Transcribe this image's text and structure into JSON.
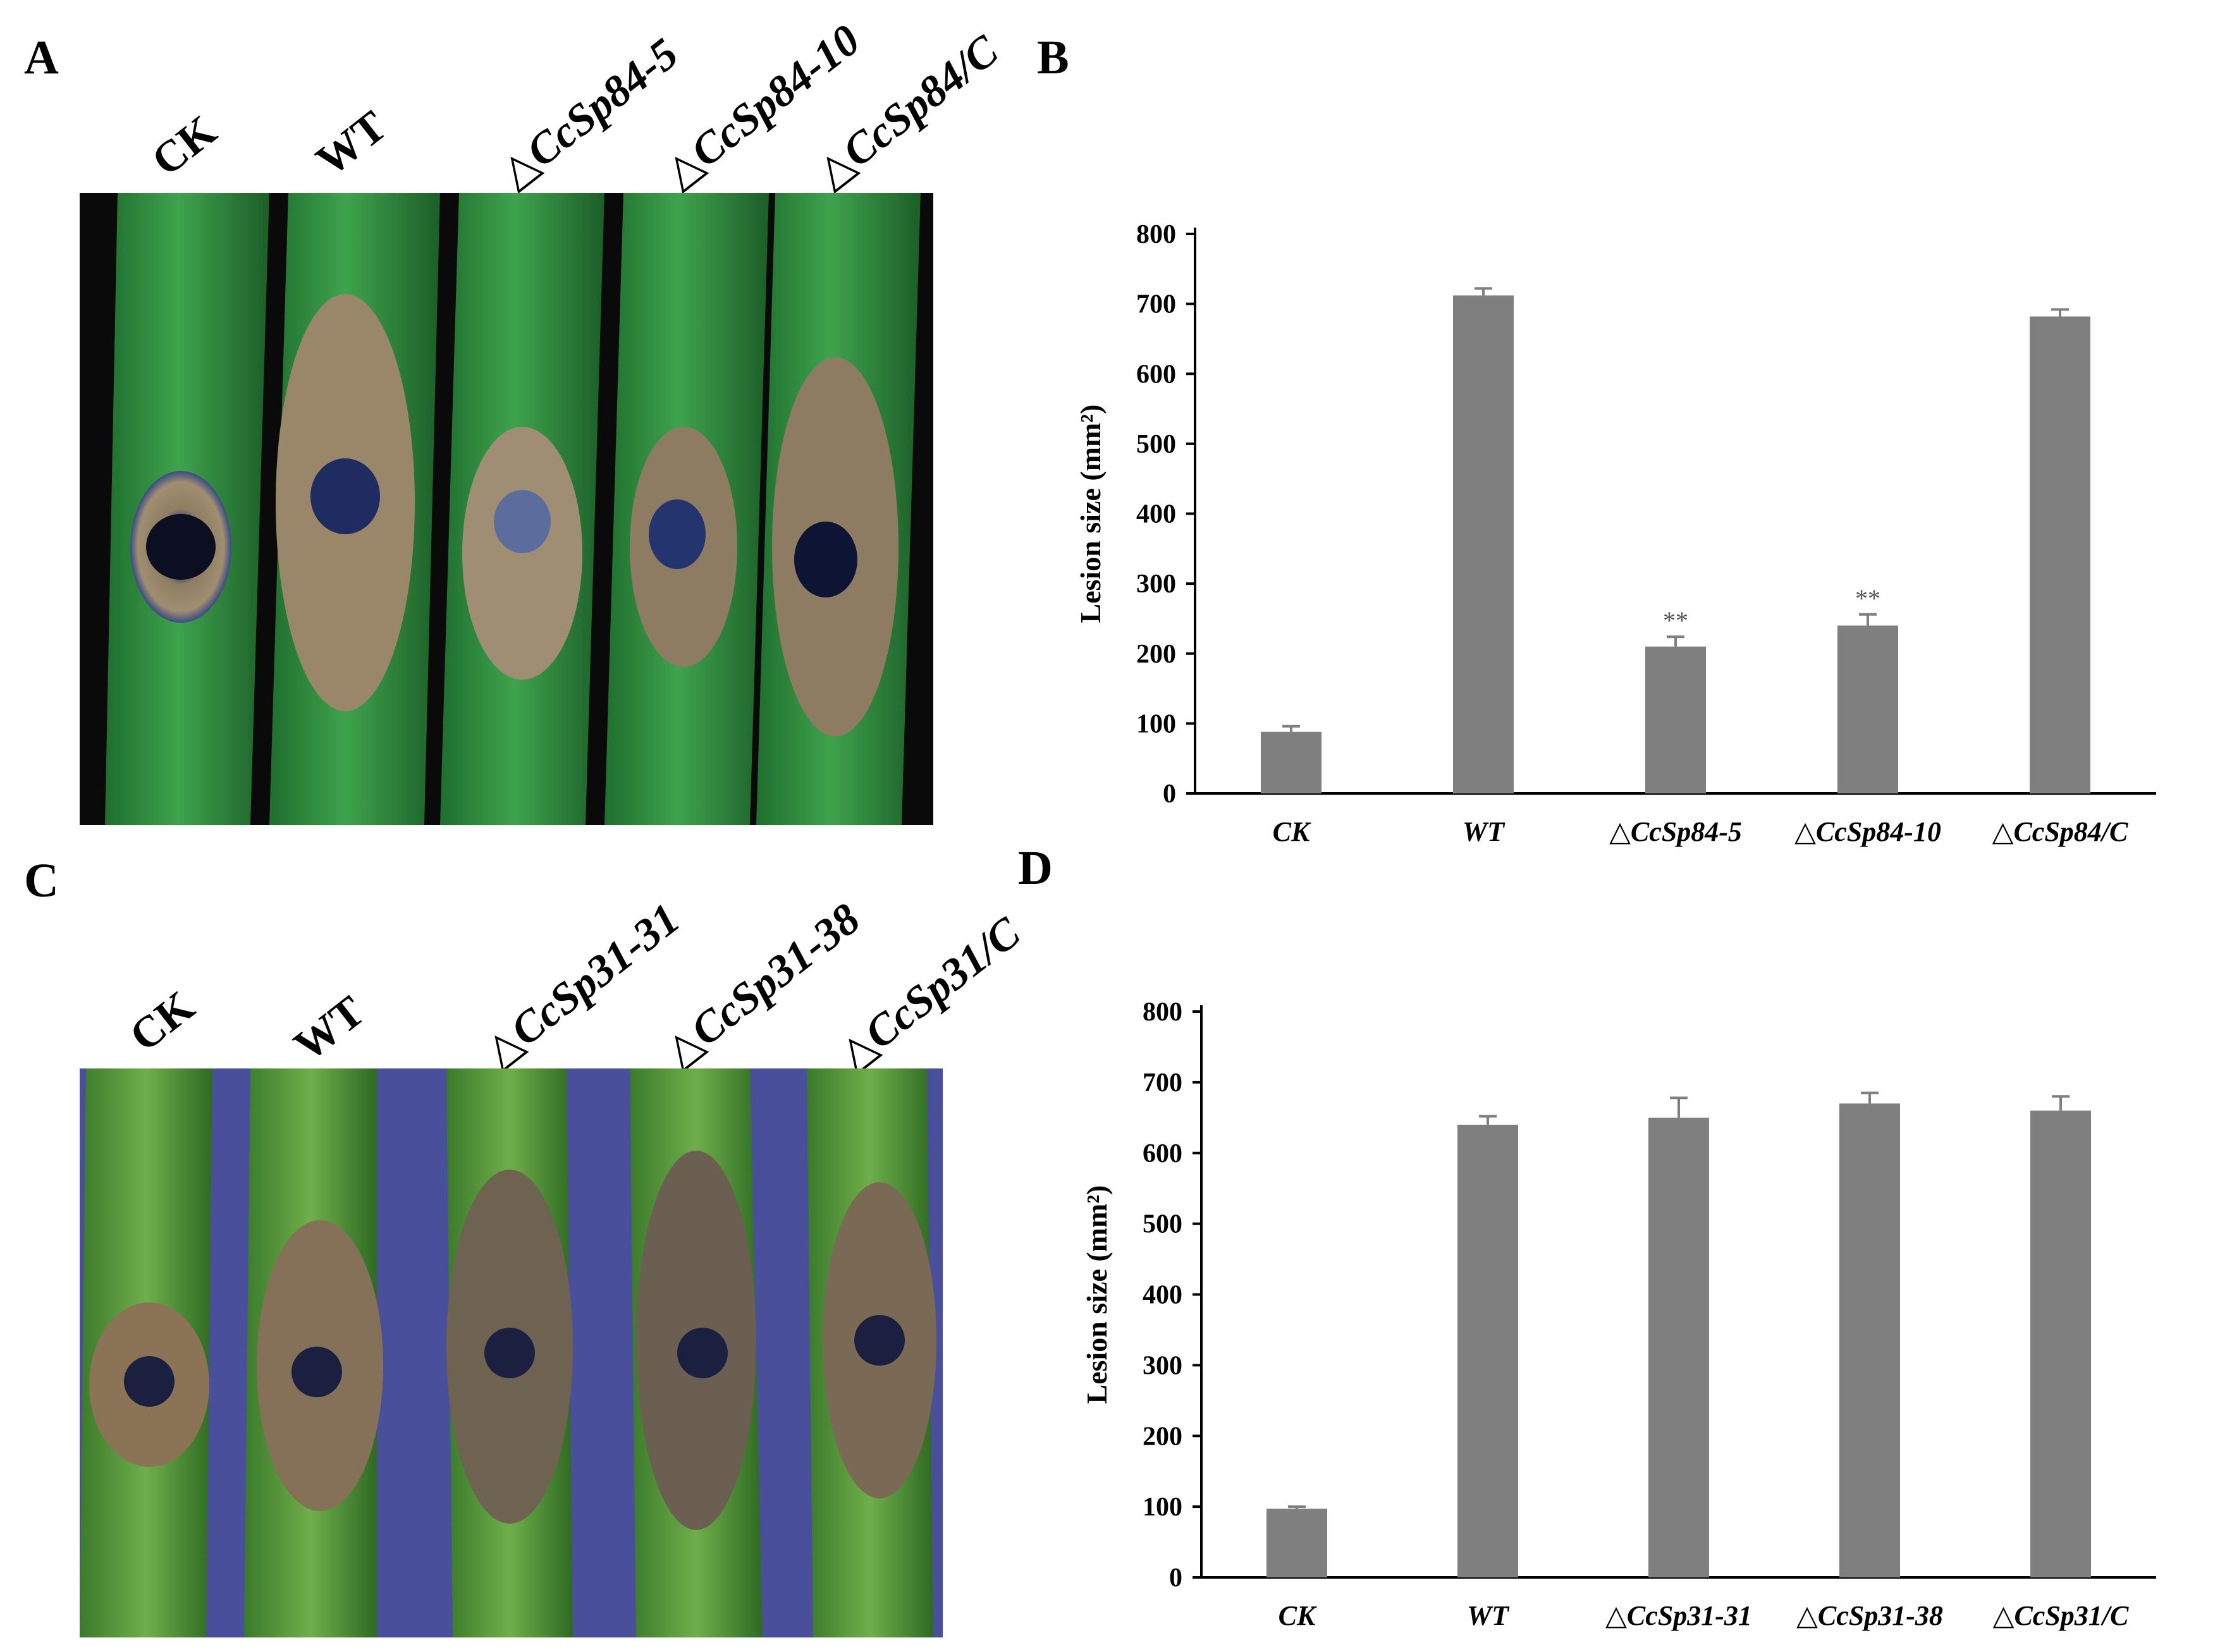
{
  "panels": {
    "a": {
      "letter": "A",
      "labels": [
        {
          "prefix": "",
          "italic": "",
          "plain": "CK"
        },
        {
          "prefix": "",
          "italic": "",
          "plain": "WT"
        },
        {
          "prefix": "△",
          "italic": "CcSp84-5",
          "plain": ""
        },
        {
          "prefix": "△",
          "italic": "CcSp84-10",
          "plain": ""
        },
        {
          "prefix": "△",
          "italic": "CcSp84/C",
          "plain": ""
        }
      ]
    },
    "b": {
      "letter": "B"
    },
    "c": {
      "letter": "C",
      "labels": [
        {
          "prefix": "",
          "italic": "",
          "plain": "CK"
        },
        {
          "prefix": "",
          "italic": "",
          "plain": "WT"
        },
        {
          "prefix": "△",
          "italic": "CcSp31-31",
          "plain": ""
        },
        {
          "prefix": "△",
          "italic": "CcSp31-38",
          "plain": ""
        },
        {
          "prefix": "△",
          "italic": "CcSp31/C",
          "plain": ""
        }
      ]
    },
    "d": {
      "letter": "D"
    }
  },
  "colors": {
    "bar": "#7f7f7f",
    "photo_a_background": "#0a0a0a",
    "photo_c_background": "#4a4f9c",
    "stem_green": "#2f8a3c",
    "lesion_brown": "#8a7a5c",
    "lesion_center": "#1b2040"
  },
  "chart_data": [
    {
      "type": "bar",
      "panel": "B",
      "categories": [
        "CK",
        "WT",
        "△CcSp84-5",
        "△CcSp84-10",
        "△CcSp84/C"
      ],
      "values": [
        88,
        712,
        210,
        240,
        682
      ],
      "errors": [
        8,
        10,
        14,
        16,
        10
      ],
      "annotations": [
        "",
        "",
        "**",
        "**",
        ""
      ],
      "ylabel": "Lesion size (mm²)",
      "ylim": [
        0,
        800
      ],
      "yticks": [
        0,
        100,
        200,
        300,
        400,
        500,
        600,
        700,
        800
      ],
      "grid": false
    },
    {
      "type": "bar",
      "panel": "D",
      "categories": [
        "CK",
        "WT",
        "△CcSp31-31",
        "△CcSp31-38",
        "△CcSp31/C"
      ],
      "values": [
        97,
        640,
        650,
        670,
        660
      ],
      "errors": [
        3,
        12,
        28,
        15,
        20
      ],
      "annotations": [
        "",
        "",
        "",
        "",
        ""
      ],
      "ylabel": "Lesion size (mm²)",
      "ylim": [
        0,
        800
      ],
      "yticks": [
        0,
        100,
        200,
        300,
        400,
        500,
        600,
        700,
        800
      ],
      "grid": false
    }
  ]
}
